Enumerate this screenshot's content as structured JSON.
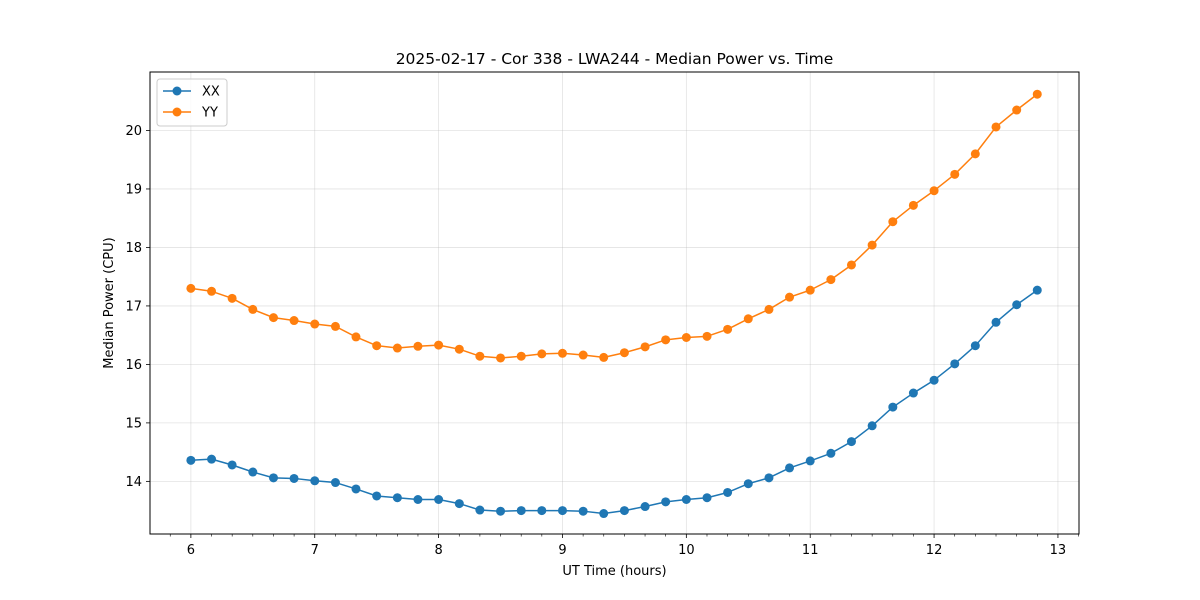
{
  "chart_data": {
    "type": "line",
    "title": "2025-02-17 - Cor 338 - LWA244 - Median Power vs. Time",
    "xlabel": "UT Time (hours)",
    "ylabel": "Median Power (CPU)",
    "xlim": [
      5.67,
      13.17
    ],
    "ylim": [
      13.1,
      21.0
    ],
    "xticks": [
      6,
      7,
      8,
      9,
      10,
      11,
      12,
      13
    ],
    "yticks": [
      14,
      15,
      16,
      17,
      18,
      19,
      20
    ],
    "grid": true,
    "legend_position": "top-left",
    "x": [
      6.0,
      6.167,
      6.333,
      6.5,
      6.667,
      6.833,
      7.0,
      7.167,
      7.333,
      7.5,
      7.667,
      7.833,
      8.0,
      8.167,
      8.333,
      8.5,
      8.667,
      8.833,
      9.0,
      9.167,
      9.333,
      9.5,
      9.667,
      9.833,
      10.0,
      10.167,
      10.333,
      10.5,
      10.667,
      10.833,
      11.0,
      11.167,
      11.333,
      11.5,
      11.667,
      11.833,
      12.0,
      12.167,
      12.333,
      12.5,
      12.667,
      12.833
    ],
    "series": [
      {
        "name": "XX",
        "color": "#1f77b4",
        "values": [
          14.36,
          14.38,
          14.28,
          14.16,
          14.06,
          14.05,
          14.01,
          13.98,
          13.87,
          13.75,
          13.72,
          13.69,
          13.69,
          13.62,
          13.51,
          13.49,
          13.5,
          13.5,
          13.5,
          13.49,
          13.45,
          13.5,
          13.57,
          13.65,
          13.69,
          13.72,
          13.81,
          13.96,
          14.06,
          14.23,
          14.35,
          14.48,
          14.68,
          14.95,
          15.27,
          15.51,
          15.73,
          16.01,
          16.32,
          16.72,
          17.02,
          17.27
        ]
      },
      {
        "name": "YY",
        "color": "#ff7f0e",
        "values": [
          17.3,
          17.25,
          17.13,
          16.94,
          16.8,
          16.75,
          16.69,
          16.65,
          16.47,
          16.32,
          16.28,
          16.31,
          16.33,
          16.26,
          16.14,
          16.11,
          16.14,
          16.18,
          16.19,
          16.16,
          16.12,
          16.2,
          16.3,
          16.42,
          16.46,
          16.48,
          16.6,
          16.78,
          16.94,
          17.15,
          17.27,
          17.45,
          17.7,
          18.04,
          18.44,
          18.72,
          18.97,
          19.25,
          19.6,
          20.06,
          20.35,
          20.62
        ]
      }
    ]
  }
}
